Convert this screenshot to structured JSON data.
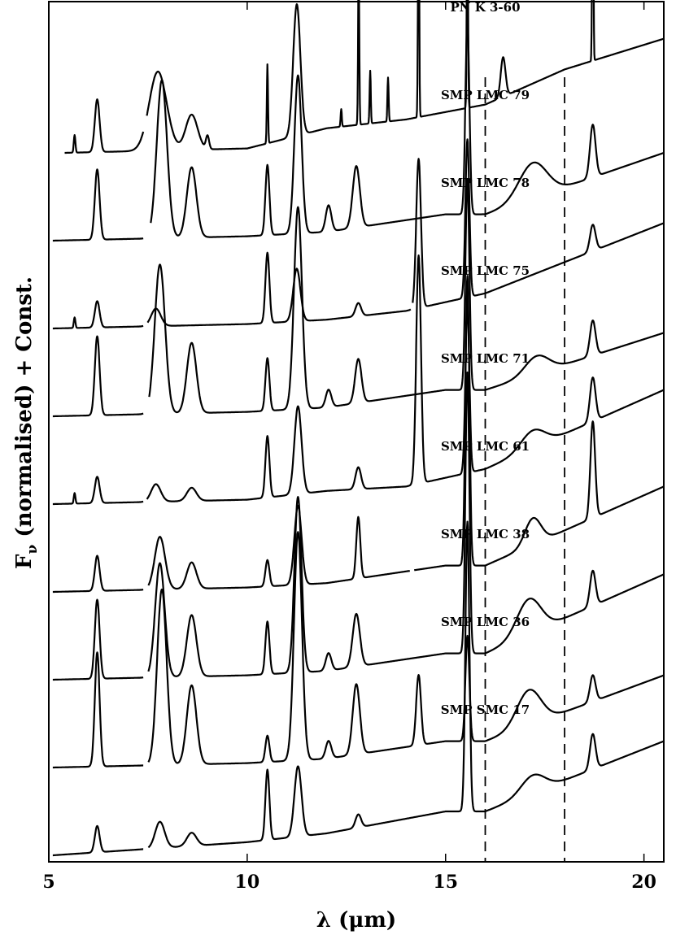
{
  "chart_data": {
    "type": "line",
    "title": "",
    "xlabel": "λ (μm)",
    "ylabel": "F",
    "ylabel_sub": "ν",
    "ylabel_rest": " (normalised) + Const.",
    "xlim": [
      5,
      20.5
    ],
    "x_ticks": [
      5,
      10,
      15,
      20
    ],
    "x_tick_labels": [
      "5",
      "10",
      "15",
      "20"
    ],
    "y_ticks_labeled": false,
    "reference_lines_x": [
      16,
      18
    ],
    "series_order": "top to bottom, vertically offset",
    "series": [
      {
        "name": "PN K 3-60",
        "offset": 8.0,
        "continuum": [
          [
            5.4,
            0
          ],
          [
            10,
            0.05
          ],
          [
            12,
            0.28
          ],
          [
            14,
            0.38
          ],
          [
            16,
            0.55
          ],
          [
            18,
            0.95
          ],
          [
            20.5,
            1.3
          ]
        ],
        "features": [
          [
            5.65,
            0.2,
            0.02
          ],
          [
            6.22,
            0.6,
            0.06
          ],
          [
            7.75,
            0.9,
            0.22
          ],
          [
            8.6,
            0.4,
            0.15
          ],
          [
            9.0,
            0.15,
            0.04
          ],
          [
            10.51,
            0.9,
            0.015
          ],
          [
            11.25,
            1.5,
            0.09
          ],
          [
            12.37,
            0.2,
            0.015
          ],
          [
            12.81,
            1.8,
            0.015
          ],
          [
            13.1,
            0.6,
            0.015
          ],
          [
            13.55,
            0.5,
            0.015
          ],
          [
            14.32,
            2.8,
            0.015
          ],
          [
            15.55,
            2.8,
            0.015
          ],
          [
            16.45,
            0.45,
            0.06
          ],
          [
            18.71,
            2.5,
            0.015
          ]
        ],
        "gaps": [
          [
            7.38,
            7.46
          ]
        ]
      },
      {
        "name": "SMP LMC 79",
        "offset": 7.0,
        "continuum": [
          [
            5.1,
            0
          ],
          [
            10,
            0.05
          ],
          [
            12,
            0.1
          ],
          [
            15,
            0.3
          ],
          [
            16,
            0.3
          ],
          [
            20.5,
            1.0
          ]
        ],
        "features": [
          [
            6.22,
            0.8,
            0.06
          ],
          [
            7.85,
            1.8,
            0.13
          ],
          [
            8.6,
            0.8,
            0.12
          ],
          [
            10.51,
            0.8,
            0.05
          ],
          [
            11.28,
            1.8,
            0.09
          ],
          [
            12.05,
            0.3,
            0.07
          ],
          [
            12.75,
            0.7,
            0.09
          ],
          [
            15.55,
            2.2,
            0.05
          ],
          [
            17.2,
            0.4,
            0.35
          ],
          [
            18.71,
            0.6,
            0.07
          ]
        ],
        "gaps": [
          [
            7.38,
            7.56
          ]
        ]
      },
      {
        "name": "SMP LMC 78",
        "offset": 6.0,
        "continuum": [
          [
            5.1,
            0
          ],
          [
            10,
            0.05
          ],
          [
            12,
            0.1
          ],
          [
            14,
            0.2
          ],
          [
            16,
            0.4
          ],
          [
            20.5,
            1.2
          ]
        ],
        "features": [
          [
            5.65,
            0.12,
            0.02
          ],
          [
            6.22,
            0.3,
            0.06
          ],
          [
            7.7,
            0.2,
            0.12
          ],
          [
            10.51,
            0.8,
            0.05
          ],
          [
            11.25,
            0.6,
            0.09
          ],
          [
            12.8,
            0.15,
            0.07
          ],
          [
            14.32,
            1.7,
            0.06
          ],
          [
            15.55,
            1.8,
            0.05
          ],
          [
            18.71,
            0.3,
            0.07
          ]
        ],
        "gaps": [
          [
            7.38,
            7.48
          ],
          [
            14.12,
            14.16
          ]
        ]
      },
      {
        "name": "SMP LMC 75",
        "offset": 5.0,
        "continuum": [
          [
            5.1,
            0
          ],
          [
            10,
            0.05
          ],
          [
            12,
            0.1
          ],
          [
            15,
            0.3
          ],
          [
            16,
            0.3
          ],
          [
            20.5,
            0.95
          ]
        ],
        "features": [
          [
            6.22,
            0.9,
            0.06
          ],
          [
            7.8,
            1.7,
            0.13
          ],
          [
            8.6,
            0.8,
            0.12
          ],
          [
            10.51,
            0.6,
            0.05
          ],
          [
            11.28,
            2.3,
            0.1
          ],
          [
            12.05,
            0.2,
            0.07
          ],
          [
            12.8,
            0.5,
            0.08
          ],
          [
            15.55,
            2.4,
            0.05
          ],
          [
            17.3,
            0.2,
            0.3
          ],
          [
            18.71,
            0.4,
            0.07
          ]
        ],
        "gaps": [
          [
            7.38,
            7.52
          ]
        ]
      },
      {
        "name": "SMP LMC 71",
        "offset": 4.0,
        "continuum": [
          [
            5.1,
            0
          ],
          [
            10,
            0.05
          ],
          [
            12,
            0.15
          ],
          [
            14,
            0.2
          ],
          [
            16,
            0.4
          ],
          [
            20.5,
            1.3
          ]
        ],
        "features": [
          [
            5.65,
            0.12,
            0.02
          ],
          [
            6.22,
            0.3,
            0.06
          ],
          [
            7.7,
            0.2,
            0.12
          ],
          [
            8.6,
            0.15,
            0.12
          ],
          [
            10.51,
            0.7,
            0.05
          ],
          [
            11.28,
            1.0,
            0.09
          ],
          [
            12.8,
            0.25,
            0.07
          ],
          [
            14.32,
            2.6,
            0.06
          ],
          [
            15.55,
            1.9,
            0.05
          ],
          [
            17.2,
            0.2,
            0.3
          ],
          [
            18.71,
            0.5,
            0.07
          ]
        ],
        "gaps": [
          [
            7.38,
            7.46
          ]
        ]
      },
      {
        "name": "SMP LMC 61",
        "offset": 3.0,
        "continuum": [
          [
            5.1,
            0
          ],
          [
            10,
            0.05
          ],
          [
            12,
            0.1
          ],
          [
            15,
            0.3
          ],
          [
            16,
            0.3
          ],
          [
            20.5,
            1.2
          ]
        ],
        "features": [
          [
            6.22,
            0.4,
            0.06
          ],
          [
            7.8,
            0.6,
            0.13
          ],
          [
            8.6,
            0.3,
            0.12
          ],
          [
            10.51,
            0.3,
            0.05
          ],
          [
            11.28,
            0.9,
            0.09
          ],
          [
            12.8,
            0.7,
            0.05
          ],
          [
            15.55,
            3.3,
            0.05
          ],
          [
            17.2,
            0.3,
            0.2
          ],
          [
            18.71,
            1.1,
            0.06
          ]
        ],
        "gaps": [
          [
            7.38,
            7.5
          ],
          [
            14.1,
            14.2
          ]
        ]
      },
      {
        "name": "SMP LMC 38",
        "offset": 2.0,
        "continuum": [
          [
            5.1,
            0
          ],
          [
            10,
            0.05
          ],
          [
            12,
            0.1
          ],
          [
            15,
            0.3
          ],
          [
            16,
            0.3
          ],
          [
            20.5,
            1.2
          ]
        ],
        "features": [
          [
            6.22,
            0.9,
            0.06
          ],
          [
            7.8,
            1.3,
            0.12
          ],
          [
            8.6,
            0.7,
            0.12
          ],
          [
            10.51,
            0.6,
            0.05
          ],
          [
            11.28,
            2.0,
            0.09
          ],
          [
            12.05,
            0.2,
            0.07
          ],
          [
            12.75,
            0.6,
            0.09
          ],
          [
            15.55,
            3.2,
            0.05
          ],
          [
            17.1,
            0.4,
            0.3
          ],
          [
            18.71,
            0.4,
            0.07
          ]
        ],
        "gaps": [
          [
            7.38,
            7.5
          ]
        ]
      },
      {
        "name": "SMP LMC 36",
        "offset": 1.0,
        "continuum": [
          [
            5.1,
            0
          ],
          [
            10,
            0.05
          ],
          [
            12,
            0.1
          ],
          [
            15,
            0.3
          ],
          [
            16,
            0.3
          ],
          [
            20.5,
            1.05
          ]
        ],
        "features": [
          [
            6.22,
            1.3,
            0.06
          ],
          [
            7.85,
            2.0,
            0.12
          ],
          [
            8.6,
            0.9,
            0.12
          ],
          [
            10.51,
            0.3,
            0.05
          ],
          [
            11.28,
            2.6,
            0.1
          ],
          [
            12.05,
            0.2,
            0.07
          ],
          [
            12.75,
            0.8,
            0.09
          ],
          [
            14.32,
            0.8,
            0.06
          ],
          [
            15.55,
            1.2,
            0.05
          ],
          [
            17.1,
            0.4,
            0.3
          ],
          [
            18.71,
            0.3,
            0.07
          ]
        ],
        "gaps": [
          [
            7.38,
            7.5
          ]
        ]
      },
      {
        "name": "SMP SMC 17",
        "offset": 0.0,
        "continuum": [
          [
            5.1,
            0
          ],
          [
            10,
            0.15
          ],
          [
            12,
            0.25
          ],
          [
            15,
            0.5
          ],
          [
            16,
            0.5
          ],
          [
            20.5,
            1.3
          ]
        ],
        "features": [
          [
            6.22,
            0.3,
            0.06
          ],
          [
            7.8,
            0.3,
            0.12
          ],
          [
            8.6,
            0.15,
            0.12
          ],
          [
            10.51,
            0.8,
            0.05
          ],
          [
            11.28,
            0.8,
            0.09
          ],
          [
            12.8,
            0.15,
            0.07
          ],
          [
            15.55,
            3.3,
            0.05
          ],
          [
            17.2,
            0.2,
            0.3
          ],
          [
            18.71,
            0.4,
            0.07
          ]
        ],
        "gaps": [
          [
            7.38,
            7.5
          ]
        ]
      }
    ]
  }
}
